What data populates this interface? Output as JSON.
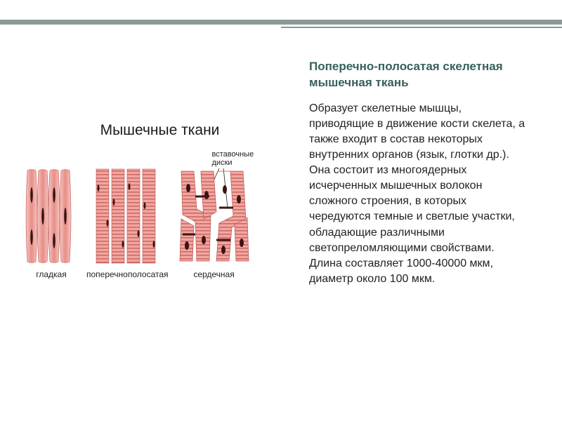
{
  "accent": {
    "primary_color": "#8a9a99"
  },
  "left": {
    "diagram_title": "Мышечные ткани",
    "callout_label": "вставочные\nдиски",
    "tissues": [
      {
        "name": "smooth",
        "label": "гладкая"
      },
      {
        "name": "striated",
        "label": "поперечнополосатая"
      },
      {
        "name": "cardiac",
        "label": "сердечная"
      }
    ]
  },
  "right": {
    "subtitle": "Поперечно-полосатая скелетная мышечная ткань",
    "body": "Образует скелетные мышцы, приводящие в движение кости скелета, а также входит в состав некоторых внутренних органов (язык, глотки др.). Она состоит из многоядерных исчерченных мышечных волокон сложного строения, в которых чередуются темные и светлые участки, обладающие различными светопреломляющими свойствами. Длина составляет 1000-40000 мкм, диаметр около 100 мкм."
  },
  "colors": {
    "fiber_light": "#f4b9b5",
    "fiber_mid": "#e98d87",
    "fiber_dark": "#d96a64",
    "nucleus": "#4a1b1b",
    "stripe": "#c25a55",
    "subtitle": "#36605c"
  }
}
